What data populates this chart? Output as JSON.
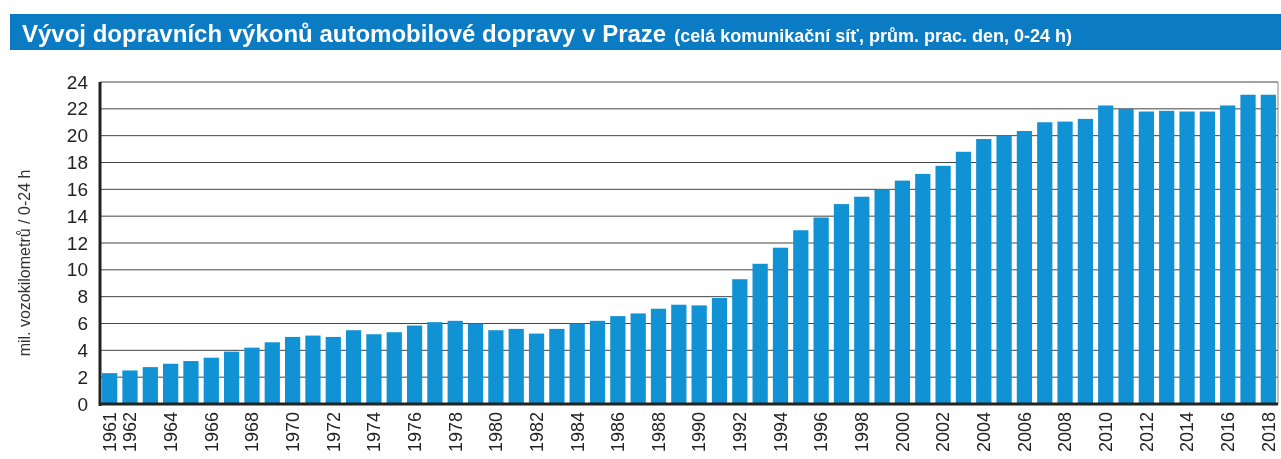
{
  "chart_data": {
    "type": "bar",
    "title": "Vývoj dopravních výkonů automobilové dopravy v Praze",
    "subtitle": "(celá komunikační síť, prům. prac. den, 0-24 h)",
    "ylabel": "mil. vozokilometrů / 0-24 h",
    "categories": [
      "1961",
      "1962",
      null,
      "1964",
      null,
      "1966",
      null,
      "1968",
      null,
      "1970",
      null,
      "1972",
      null,
      "1974",
      null,
      "1976",
      null,
      "1978",
      null,
      "1980",
      null,
      "1982",
      null,
      "1984",
      null,
      "1986",
      null,
      "1988",
      null,
      "1990",
      null,
      "1992",
      null,
      "1994",
      null,
      "1996",
      null,
      "1998",
      null,
      "2000",
      null,
      "2002",
      null,
      "2004",
      null,
      "2006",
      null,
      "2008",
      null,
      "2010",
      null,
      "2012",
      null,
      "2014",
      null,
      "2016",
      null,
      "2018"
    ],
    "values": [
      2.3,
      2.5,
      2.75,
      3.0,
      3.2,
      3.45,
      3.9,
      4.2,
      4.6,
      5.0,
      5.1,
      5.0,
      5.5,
      5.2,
      5.35,
      5.85,
      6.1,
      6.2,
      6.0,
      5.5,
      5.6,
      5.25,
      5.6,
      6.0,
      6.2,
      6.55,
      6.75,
      7.1,
      7.4,
      7.35,
      7.9,
      9.3,
      10.45,
      11.65,
      12.95,
      13.9,
      14.9,
      15.45,
      16.0,
      16.65,
      17.15,
      17.75,
      18.8,
      19.75,
      20.0,
      20.35,
      21.0,
      21.05,
      21.25,
      22.25,
      22.0,
      21.8,
      21.85,
      21.8,
      21.8,
      22.25,
      23.05,
      23.05
    ],
    "color": "#1192d4",
    "ylim": [
      0,
      24
    ],
    "yticks": [
      0,
      2,
      4,
      6,
      8,
      10,
      12,
      14,
      16,
      18,
      20,
      22,
      24
    ],
    "grid": "y"
  }
}
